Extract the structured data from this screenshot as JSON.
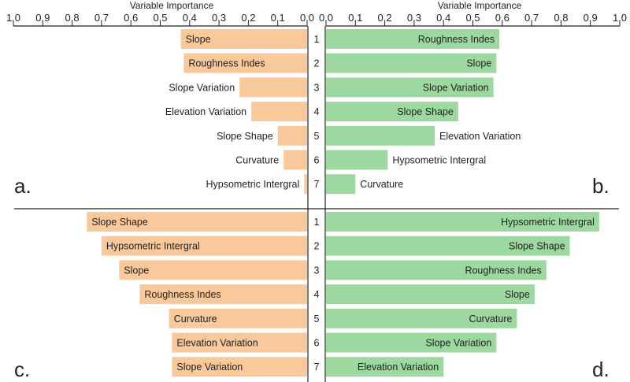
{
  "chart_data": {
    "type": "bar",
    "axis_title": "Variable Importance",
    "left_axis_ticks": [
      "1.0",
      "0.9",
      "0.8",
      "0.7",
      "0.6",
      "0.5",
      "0.4",
      "0.3",
      "0.2",
      "0.1",
      "0.0"
    ],
    "right_axis_ticks": [
      "0.0",
      "0.1",
      "0.2",
      "0.3",
      "0.4",
      "0.5",
      "0.6",
      "0.7",
      "0.8",
      "0.9",
      "1.0"
    ],
    "xlim": [
      0,
      1
    ],
    "ranks": [
      "1",
      "2",
      "3",
      "4",
      "5",
      "6",
      "7"
    ],
    "colors": {
      "left": "#f9c99b",
      "right": "#9dd8a0",
      "axis": "#222222"
    },
    "panels": [
      {
        "letter": "a.",
        "side": "left",
        "row": "top",
        "bars": [
          {
            "rank": "1",
            "label": "Slope",
            "value": 0.43
          },
          {
            "rank": "2",
            "label": "Roughness Indes",
            "value": 0.42
          },
          {
            "rank": "3",
            "label": "Slope Variation",
            "value": 0.23
          },
          {
            "rank": "4",
            "label": "Elevation Variation",
            "value": 0.19
          },
          {
            "rank": "5",
            "label": "Slope Shape",
            "value": 0.1
          },
          {
            "rank": "6",
            "label": "Curvature",
            "value": 0.08
          },
          {
            "rank": "7",
            "label": "Hypsometric Intergral",
            "value": 0.01
          }
        ]
      },
      {
        "letter": "b.",
        "side": "right",
        "row": "top",
        "bars": [
          {
            "rank": "1",
            "label": "Roughness Indes",
            "value": 0.59
          },
          {
            "rank": "2",
            "label": "Slope",
            "value": 0.58
          },
          {
            "rank": "3",
            "label": "Slope Variation",
            "value": 0.57
          },
          {
            "rank": "4",
            "label": "Slope Shape",
            "value": 0.45
          },
          {
            "rank": "5",
            "label": "Elevation Variation",
            "value": 0.37
          },
          {
            "rank": "6",
            "label": "Hypsometric Intergral",
            "value": 0.21
          },
          {
            "rank": "7",
            "label": "Curvature",
            "value": 0.1
          }
        ]
      },
      {
        "letter": "c.",
        "side": "left",
        "row": "bottom",
        "bars": [
          {
            "rank": "1",
            "label": "Slope Shape",
            "value": 0.75
          },
          {
            "rank": "2",
            "label": "Hypsometric Intergral",
            "value": 0.7
          },
          {
            "rank": "3",
            "label": "Slope",
            "value": 0.64
          },
          {
            "rank": "4",
            "label": "Roughness Indes",
            "value": 0.57
          },
          {
            "rank": "5",
            "label": "Curvature",
            "value": 0.47
          },
          {
            "rank": "6",
            "label": "Elevation Variation",
            "value": 0.46
          },
          {
            "rank": "7",
            "label": "Slope Variation",
            "value": 0.46
          }
        ]
      },
      {
        "letter": "d.",
        "side": "right",
        "row": "bottom",
        "bars": [
          {
            "rank": "1",
            "label": "Hypsometric Intergral",
            "value": 0.93
          },
          {
            "rank": "2",
            "label": "Slope Shape",
            "value": 0.83
          },
          {
            "rank": "3",
            "label": "Roughness Indes",
            "value": 0.75
          },
          {
            "rank": "4",
            "label": "Slope",
            "value": 0.71
          },
          {
            "rank": "5",
            "label": "Curvature",
            "value": 0.65
          },
          {
            "rank": "6",
            "label": "Slope Variation",
            "value": 0.58
          },
          {
            "rank": "7",
            "label": "Elevation Variation",
            "value": 0.4
          }
        ]
      }
    ]
  }
}
